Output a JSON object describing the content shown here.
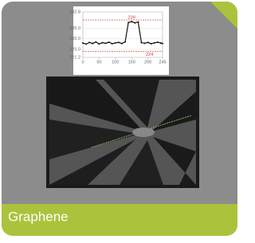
{
  "tile": {
    "label": "Graphene"
  },
  "inset_chart": {
    "type": "line",
    "x": [
      0,
      10,
      20,
      30,
      40,
      50,
      60,
      70,
      80,
      90,
      100,
      110,
      120,
      130,
      140,
      150,
      160,
      170,
      180,
      190,
      200,
      210,
      220,
      230,
      240,
      245
    ],
    "series": [
      {
        "color": "#111111",
        "values": [
          228,
          227.5,
          228.3,
          227.8,
          228.5,
          227.6,
          228.2,
          227.9,
          228.4,
          227.7,
          228.1,
          228.3,
          227.8,
          228.6,
          237.8,
          238.2,
          237.6,
          238,
          228.2,
          227.9,
          228.3,
          227.7,
          228.1,
          228.4,
          228,
          227.8
        ]
      }
    ],
    "xlim": [
      0,
      245
    ],
    "ylim": [
      221.2,
      242.8
    ],
    "xticks": [
      0,
      50,
      100,
      150,
      200,
      245
    ],
    "yticks": [
      242.8,
      {
        "value": 235,
        "label": "235.0"
      },
      {
        "value": 230,
        "label": "230.0"
      },
      {
        "value": 225,
        "label": "225.0"
      },
      221.2
    ],
    "ref_lines": [
      {
        "value": 239,
        "label": "239",
        "x": 150
      },
      {
        "value": 224,
        "label": "224",
        "x": 205
      }
    ],
    "ref_color": "#e03030",
    "grid": true
  }
}
